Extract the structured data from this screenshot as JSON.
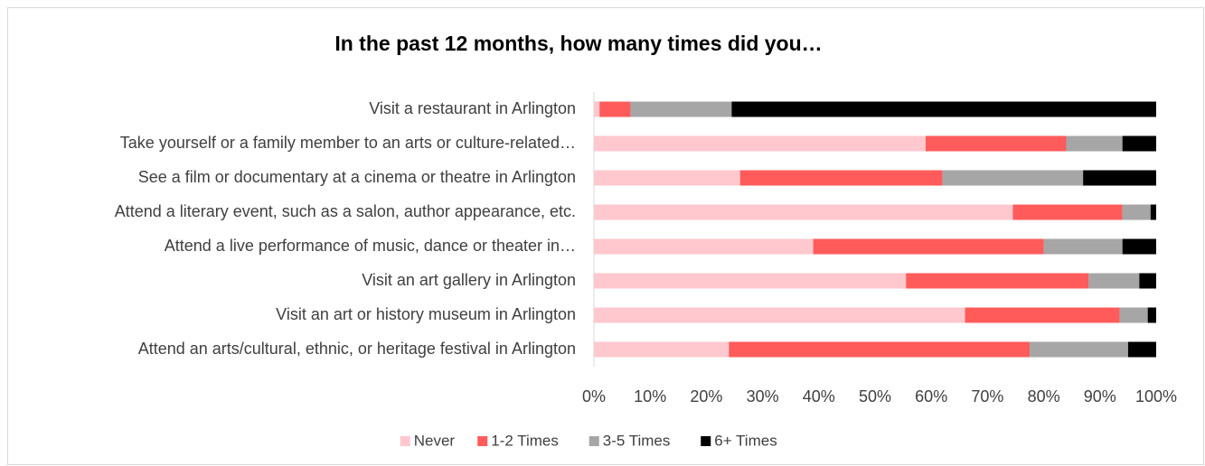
{
  "chart_data": {
    "type": "stacked_bar_horizontal",
    "title": "In the past 12 months, how many times did you…",
    "categories": [
      "Visit a restaurant in Arlington",
      "Take yourself or a family member to an arts or culture-related…",
      "See a film or documentary at a cinema or theatre in Arlington",
      "Attend a literary event, such as a salon, author appearance, etc.",
      "Attend a live performance of music, dance or theater in…",
      "Visit an art gallery in Arlington",
      "Visit an art or history museum in Arlington",
      "Attend an arts/cultural, ethnic, or heritage festival in Arlington"
    ],
    "series": [
      {
        "name": "Never",
        "color": "#ffc7ce",
        "values": [
          1,
          59,
          26,
          74.5,
          39,
          55.5,
          66,
          24
        ]
      },
      {
        "name": "1-2 Times",
        "color": "#ff5b5b",
        "values": [
          5.5,
          25,
          36,
          19.5,
          41,
          32.5,
          27.5,
          53.5
        ]
      },
      {
        "name": "3-5 Times",
        "color": "#a6a6a6",
        "values": [
          18,
          10,
          25,
          5,
          14,
          9,
          5,
          17.5
        ]
      },
      {
        "name": "6+ Times",
        "color": "#000000",
        "values": [
          75.5,
          6,
          13,
          1,
          6,
          3,
          1.5,
          5
        ]
      }
    ],
    "xlim": [
      0,
      100
    ],
    "xticks": [
      {
        "value": 0,
        "label": "0%"
      },
      {
        "value": 10,
        "label": "10%"
      },
      {
        "value": 20,
        "label": "20%"
      },
      {
        "value": 30,
        "label": "30%"
      },
      {
        "value": 40,
        "label": "40%"
      },
      {
        "value": 50,
        "label": "50%"
      },
      {
        "value": 60,
        "label": "60%"
      },
      {
        "value": 70,
        "label": "70%"
      },
      {
        "value": 80,
        "label": "80%"
      },
      {
        "value": 90,
        "label": "90%"
      },
      {
        "value": 100,
        "label": "100%"
      }
    ],
    "legend": "bottom"
  }
}
